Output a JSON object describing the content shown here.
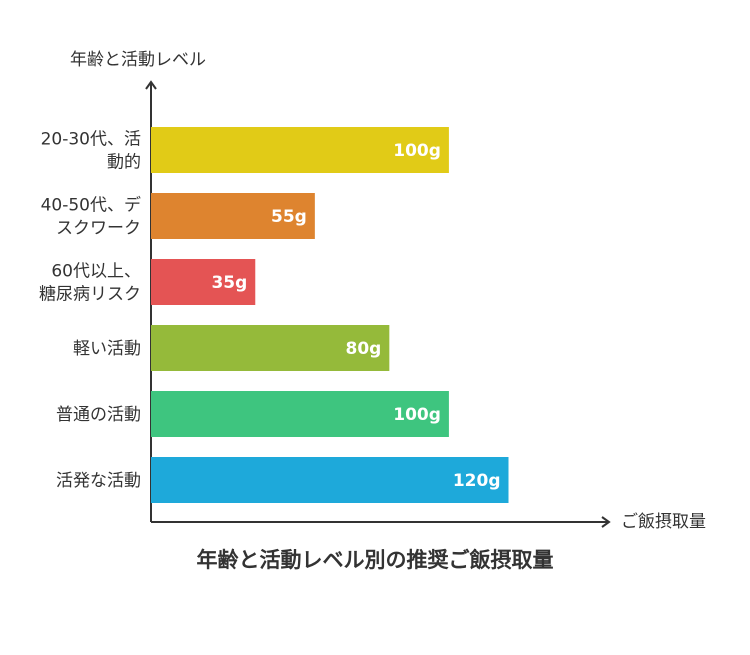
{
  "chart_data": {
    "type": "bar",
    "orientation": "horizontal",
    "title": "年齢と活動レベル別の推奨ご飯摂取量",
    "ylabel": "年齢と活動レベル",
    "xlabel": "ご飯摂取量",
    "categories": [
      [
        "20-30代、活",
        "動的"
      ],
      [
        "40-50代、デ",
        "スクワーク"
      ],
      [
        "60代以上、",
        "糖尿病リスク"
      ],
      [
        "軽い活動"
      ],
      [
        "普通の活動"
      ],
      [
        "活発な活動"
      ]
    ],
    "values": [
      100,
      55,
      35,
      80,
      100,
      120
    ],
    "value_labels": [
      "100g",
      "55g",
      "35g",
      "80g",
      "100g",
      "120g"
    ],
    "unit": "g",
    "colors": [
      "#E1CB17",
      "#DE842F",
      "#E45454",
      "#95BA3A",
      "#3EC57F",
      "#1EA9DA"
    ],
    "xlim": [
      0,
      144
    ],
    "grid": false,
    "legend": "none"
  }
}
